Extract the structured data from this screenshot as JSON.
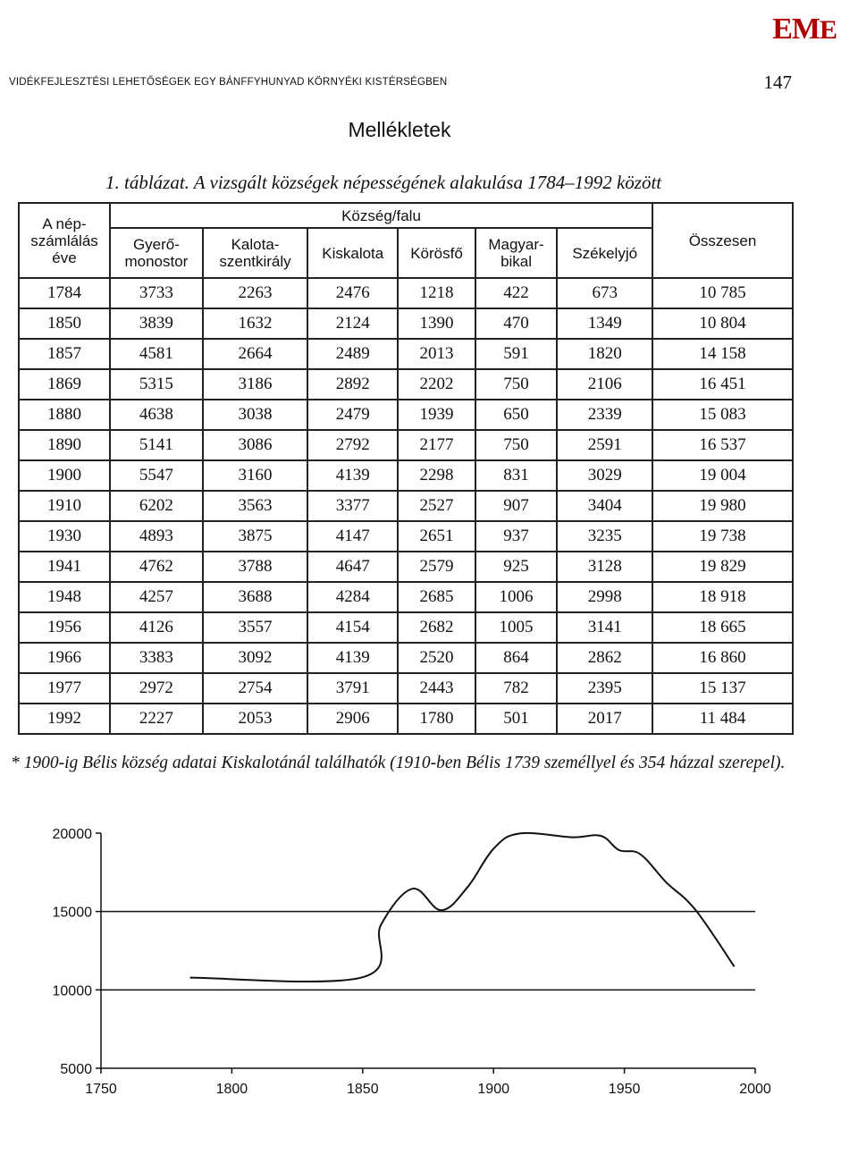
{
  "header": {
    "logo_e1": "E",
    "logo_m": "M",
    "logo_e2": "E",
    "running_title": "VIDÉKFEJLESZTÉSI LEHETŐSÉGEK EGY BÁNFFYHUNYAD KÖRNYÉKI KISTÉRSÉGBEN",
    "page_number": "147"
  },
  "section_title": "Mellékletek",
  "table": {
    "caption": "1. táblázat. A vizsgált községek népességének alakulása 1784–1992 között",
    "header_year_l1": "A nép-",
    "header_year_l2": "számlálás",
    "header_year_l3": "éve",
    "header_group": "Község/falu",
    "header_total": "Összesen",
    "col_gyero_l1": "Gyerő-",
    "col_gyero_l2": "monostor",
    "col_kalota_l1": "Kalota-",
    "col_kalota_l2": "szentkirály",
    "col_kiskalota": "Kiskalota",
    "col_korosfo": "Körösfő",
    "col_magyar_l1": "Magyar-",
    "col_magyar_l2": "bikal",
    "col_szekelyjo": "Székelyjó",
    "rows": [
      [
        "1784",
        "3733",
        "2263",
        "2476",
        "1218",
        "422",
        "673",
        "10 785"
      ],
      [
        "1850",
        "3839",
        "1632",
        "2124",
        "1390",
        "470",
        "1349",
        "10 804"
      ],
      [
        "1857",
        "4581",
        "2664",
        "2489",
        "2013",
        "591",
        "1820",
        "14 158"
      ],
      [
        "1869",
        "5315",
        "3186",
        "2892",
        "2202",
        "750",
        "2106",
        "16 451"
      ],
      [
        "1880",
        "4638",
        "3038",
        "2479",
        "1939",
        "650",
        "2339",
        "15 083"
      ],
      [
        "1890",
        "5141",
        "3086",
        "2792",
        "2177",
        "750",
        "2591",
        "16 537"
      ],
      [
        "1900",
        "5547",
        "3160",
        "4139",
        "2298",
        "831",
        "3029",
        "19 004"
      ],
      [
        "1910",
        "6202",
        "3563",
        "3377",
        "2527",
        "907",
        "3404",
        "19 980"
      ],
      [
        "1930",
        "4893",
        "3875",
        "4147",
        "2651",
        "937",
        "3235",
        "19 738"
      ],
      [
        "1941",
        "4762",
        "3788",
        "4647",
        "2579",
        "925",
        "3128",
        "19 829"
      ],
      [
        "1948",
        "4257",
        "3688",
        "4284",
        "2685",
        "1006",
        "2998",
        "18 918"
      ],
      [
        "1956",
        "4126",
        "3557",
        "4154",
        "2682",
        "1005",
        "3141",
        "18 665"
      ],
      [
        "1966",
        "3383",
        "3092",
        "4139",
        "2520",
        "864",
        "2862",
        "16 860"
      ],
      [
        "1977",
        "2972",
        "2754",
        "3791",
        "2443",
        "782",
        "2395",
        "15 137"
      ],
      [
        "1992",
        "2227",
        "2053",
        "2906",
        "1780",
        "501",
        "2017",
        "11 484"
      ]
    ]
  },
  "footnote": "* 1900-ig Bélis község adatai Kiskalotánál találhatók (1910-ben Bélis 1739 személlyel és 354 házzal szerepel).",
  "chart_data": {
    "type": "line",
    "x": [
      1784,
      1850,
      1857,
      1869,
      1880,
      1890,
      1900,
      1910,
      1930,
      1941,
      1948,
      1956,
      1966,
      1977,
      1992
    ],
    "series": [
      {
        "values": [
          10785,
          10804,
          14158,
          16451,
          15083,
          16537,
          19004,
          19980,
          19738,
          19829,
          18918,
          18665,
          16860,
          15137,
          11484
        ]
      }
    ],
    "xlim": [
      1750,
      2000
    ],
    "ylim": [
      5000,
      20000
    ],
    "x_ticks": [
      "1750",
      "1800",
      "1850",
      "1900",
      "1950",
      "2000"
    ],
    "y_ticks": [
      "20000",
      "15000",
      "10000",
      "5000"
    ],
    "gridlines": [
      15000,
      10000
    ],
    "title": "",
    "xlabel": "",
    "ylabel": ""
  }
}
